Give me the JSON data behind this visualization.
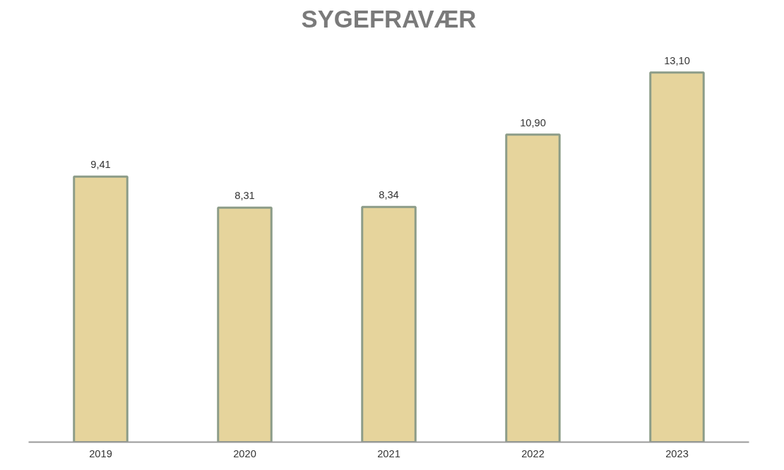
{
  "chart_data": {
    "type": "bar",
    "title": "SYGEFRAVÆR",
    "categories": [
      "2019",
      "2020",
      "2021",
      "2022",
      "2023"
    ],
    "values": [
      9.41,
      8.31,
      8.34,
      10.9,
      13.1
    ],
    "value_labels": [
      "9,41",
      "8,31",
      "8,34",
      "10,90",
      "13,10"
    ],
    "color": "#e6d49c",
    "grid": false
  }
}
